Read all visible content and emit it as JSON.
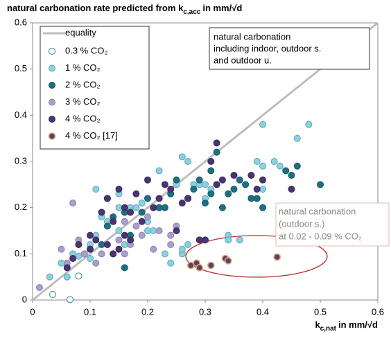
{
  "chart_data": {
    "type": "scatter",
    "title": "natural carbonation rate predicted from",
    "title_symbol": "k",
    "title_subscript": "c,acc",
    "title_unit": "in mm/√d",
    "x_label_symbol": "k",
    "x_label_subscript": "c,nat",
    "x_label_unit": "in mm/√d",
    "xlim": [
      0,
      0.6
    ],
    "ylim": [
      0,
      0.6
    ],
    "xticks": [
      0,
      0.1,
      0.2,
      0.3,
      0.4,
      0.5,
      0.6
    ],
    "yticks": [
      0,
      0.1,
      0.2,
      0.3,
      0.4,
      0.5,
      0.6
    ],
    "grid": false,
    "legend": "upper left",
    "reference_line": {
      "name": "equality",
      "color": "#bdbdbd",
      "x": [
        0,
        0.6
      ],
      "y": [
        0,
        0.6
      ]
    },
    "series": [
      {
        "name": "0.3 % CO₂",
        "color": "#ffffff",
        "edge": "#2e8b9a",
        "x": [
          0.035,
          0.065,
          0.08
        ],
        "y": [
          0.012,
          0.001,
          0.052
        ]
      },
      {
        "name": "1 % CO₂",
        "color": "#8dd0e0",
        "edge": "#5aa7b8",
        "x": [
          0.03,
          0.05,
          0.06,
          0.07,
          0.08,
          0.09,
          0.1,
          0.1,
          0.11,
          0.11,
          0.12,
          0.13,
          0.13,
          0.15,
          0.15,
          0.15,
          0.16,
          0.17,
          0.18,
          0.19,
          0.2,
          0.2,
          0.21,
          0.22,
          0.22,
          0.23,
          0.24,
          0.24,
          0.25,
          0.26,
          0.26,
          0.27,
          0.28,
          0.29,
          0.3,
          0.31,
          0.34,
          0.34,
          0.36,
          0.39,
          0.4,
          0.4,
          0.4,
          0.42,
          0.43,
          0.46,
          0.48,
          0.26,
          0.3,
          0.27
        ],
        "y": [
          0.05,
          0.08,
          0.05,
          0.1,
          0.095,
          0.1,
          0.09,
          0.12,
          0.14,
          0.24,
          0.18,
          0.22,
          0.17,
          0.23,
          0.2,
          0.15,
          0.12,
          0.2,
          0.2,
          0.21,
          0.17,
          0.15,
          0.15,
          0.28,
          0.2,
          0.1,
          0.08,
          0.23,
          0.25,
          0.1,
          0.11,
          0.3,
          0.25,
          0.25,
          0.25,
          0.24,
          0.14,
          0.13,
          0.13,
          0.3,
          0.38,
          0.24,
          0.29,
          0.3,
          0.29,
          0.35,
          0.38,
          0.31,
          0.22,
          0.12
        ]
      },
      {
        "name": "2 % CO₂",
        "color": "#1f6f80",
        "edge": "#175a68",
        "x": [
          0.1,
          0.12,
          0.13,
          0.14,
          0.16,
          0.17,
          0.19,
          0.22,
          0.24,
          0.25,
          0.27,
          0.28,
          0.29,
          0.3,
          0.31,
          0.31,
          0.32,
          0.33,
          0.34,
          0.35,
          0.36,
          0.37,
          0.38,
          0.39,
          0.4,
          0.44,
          0.45,
          0.46,
          0.5,
          0.16,
          0.23,
          0.2
        ],
        "y": [
          0.11,
          0.12,
          0.16,
          0.18,
          0.19,
          0.14,
          0.19,
          0.2,
          0.23,
          0.26,
          0.22,
          0.24,
          0.26,
          0.21,
          0.23,
          0.28,
          0.32,
          0.2,
          0.23,
          0.24,
          0.26,
          0.25,
          0.22,
          0.22,
          0.2,
          0.28,
          0.27,
          0.29,
          0.25,
          0.07,
          0.2,
          0.22
        ]
      },
      {
        "name": "3 % CO₂",
        "color": "#ab9ecb",
        "edge": "#8e80b4",
        "x": [
          0.012,
          0.05,
          0.06,
          0.08,
          0.09,
          0.11,
          0.12,
          0.14,
          0.15,
          0.16,
          0.17,
          0.18,
          0.19,
          0.2,
          0.21,
          0.22,
          0.24,
          0.25,
          0.07,
          0.24,
          0.16
        ],
        "y": [
          0.027,
          0.11,
          0.08,
          0.13,
          0.1,
          0.08,
          0.1,
          0.1,
          0.13,
          0.1,
          0.12,
          0.16,
          0.14,
          0.18,
          0.11,
          0.15,
          0.14,
          0.16,
          0.21,
          0.12,
          0.17
        ]
      },
      {
        "name": "4 % CO₂",
        "color": "#4a3572",
        "edge": "#3a285c",
        "x": [
          0.06,
          0.07,
          0.08,
          0.1,
          0.11,
          0.12,
          0.13,
          0.13,
          0.14,
          0.14,
          0.15,
          0.16,
          0.16,
          0.17,
          0.18,
          0.19,
          0.2,
          0.21,
          0.22,
          0.23,
          0.24,
          0.25,
          0.26,
          0.27,
          0.29,
          0.3,
          0.31,
          0.32,
          0.32,
          0.33,
          0.35,
          0.38,
          0.39,
          0.4,
          0.45,
          0.1,
          0.15,
          0.17
        ],
        "y": [
          0.07,
          0.09,
          0.12,
          0.14,
          0.13,
          0.19,
          0.22,
          0.12,
          0.1,
          0.17,
          0.24,
          0.2,
          0.14,
          0.13,
          0.23,
          0.17,
          0.26,
          0.2,
          0.22,
          0.25,
          0.24,
          0.15,
          0.21,
          0.22,
          0.13,
          0.13,
          0.3,
          0.34,
          0.25,
          0.26,
          0.27,
          0.27,
          0.24,
          0.26,
          0.24,
          0.11,
          0.11,
          0.19
        ]
      },
      {
        "name": "4 % CO₂ [17]",
        "color": "#5a3e6e",
        "edge": "#e0a56a",
        "x": [
          0.275,
          0.285,
          0.29,
          0.31,
          0.335,
          0.34,
          0.425
        ],
        "y": [
          0.075,
          0.08,
          0.07,
          0.075,
          0.09,
          0.085,
          0.093
        ]
      }
    ],
    "annotation_box": [
      "natural carbonation",
      "including indoor, outdoor s.",
      "and outdoor u."
    ],
    "annotation_outdoor": [
      "natural carbonation",
      "(outdoor s.)",
      "at 0.02 - 0.09 % CO₂"
    ]
  }
}
